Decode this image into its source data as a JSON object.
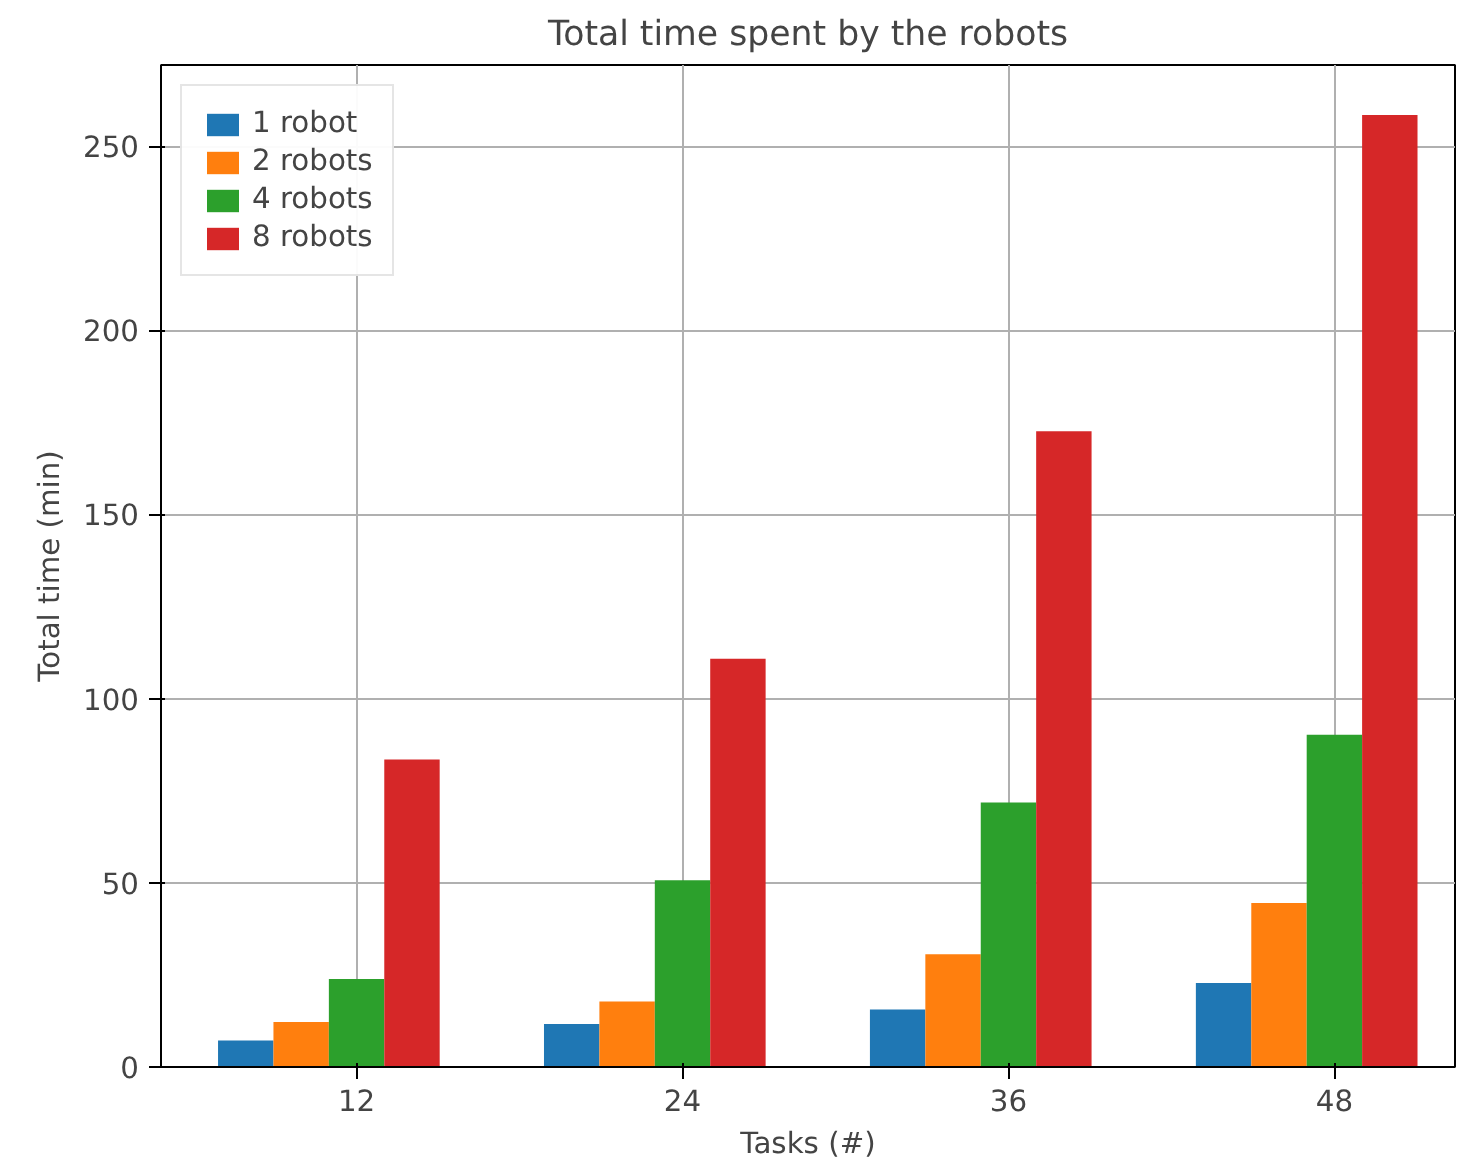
{
  "chart_data": {
    "type": "bar",
    "title": "Total time spent by the robots",
    "xlabel": "Tasks (#)",
    "ylabel": "Total time (min)",
    "categories": [
      "12",
      "24",
      "36",
      "48"
    ],
    "series": [
      {
        "name": "1 robot",
        "color": "#1f77b4",
        "values": [
          7.2,
          11.7,
          15.6,
          22.8
        ]
      },
      {
        "name": "2 robots",
        "color": "#ff7f0e",
        "values": [
          12.2,
          17.8,
          30.6,
          44.5
        ]
      },
      {
        "name": "4 robots",
        "color": "#2ca02c",
        "values": [
          23.9,
          50.7,
          71.8,
          90.2
        ]
      },
      {
        "name": "8 robots",
        "color": "#d62728",
        "values": [
          83.5,
          110.8,
          172.6,
          258.4
        ]
      }
    ],
    "ylim": [
      0,
      272
    ],
    "yticks": [
      0,
      50,
      100,
      150,
      200,
      250
    ],
    "grid": true,
    "legend": "top left"
  }
}
